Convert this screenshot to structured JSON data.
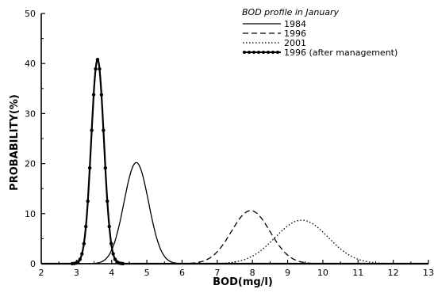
{
  "chart_data": {
    "type": "line",
    "title": "BOD profile in January",
    "xlabel": "BOD(mg/l)",
    "ylabel": "PROBABILITY(%)",
    "xlim": [
      2,
      13
    ],
    "ylim": [
      0,
      50
    ],
    "xticks": [
      "2",
      "3",
      "4",
      "5",
      "6",
      "7",
      "8",
      "9",
      "10",
      "11",
      "12",
      "13"
    ],
    "yticks": [
      "0",
      "10",
      "20",
      "30",
      "40",
      "50"
    ],
    "grid": false,
    "legend_position": "top-right",
    "series": [
      {
        "name": "1984",
        "style": "solid",
        "mean": 4.7,
        "sd": 0.35,
        "peak": 20.2
      },
      {
        "name": "1996",
        "style": "dashed",
        "mean": 7.95,
        "sd": 0.55,
        "peak": 10.6
      },
      {
        "name": "2001",
        "style": "dotted",
        "mean": 9.4,
        "sd": 0.75,
        "peak": 8.7
      },
      {
        "name": "1996 (after management)",
        "style": "solid-markers",
        "mean": 3.6,
        "sd": 0.18,
        "peak": 40.8
      }
    ]
  }
}
